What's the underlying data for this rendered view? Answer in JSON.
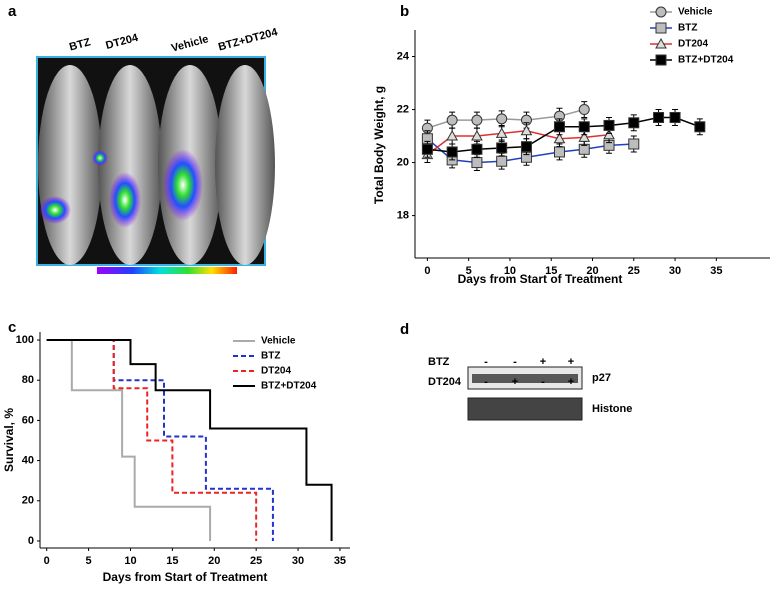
{
  "panel_labels": [
    "a",
    "b",
    "c",
    "d"
  ],
  "panel_a": {
    "labels": [
      "BTZ",
      "DT204",
      "Vehicle",
      "BTZ+DT204"
    ]
  },
  "panel_d": {
    "rows": [
      {
        "label": "BTZ",
        "signs": [
          "-",
          "-",
          "+",
          "+"
        ]
      },
      {
        "label": "DT204",
        "signs": [
          "-",
          "+",
          "-",
          "+"
        ]
      }
    ],
    "bands": [
      "p27",
      "Histone"
    ]
  },
  "chart_data": [
    {
      "type": "line",
      "x_label": "Days from Start of Treatment",
      "y_label": "Total Body Weight, g",
      "xlim": [
        -1.5,
        41.5
      ],
      "xticks": [
        0,
        5,
        10,
        15,
        20,
        25,
        30,
        35
      ],
      "ylim": [
        16.4,
        25
      ],
      "yticks": [
        18,
        20,
        22,
        24
      ],
      "grid": false,
      "legend": "top-right",
      "series": [
        {
          "name": "Vehicle",
          "color": "#9a9a9a",
          "marker": "circle",
          "marker_fill": "#bdbdbd",
          "x": [
            0,
            3,
            6,
            9,
            12,
            16,
            19
          ],
          "values": [
            21.3,
            21.6,
            21.6,
            21.65,
            21.6,
            21.75,
            22.0
          ],
          "errors": [
            0.3,
            0.3,
            0.3,
            0.3,
            0.3,
            0.3,
            0.3
          ]
        },
        {
          "name": "BTZ",
          "color": "#2040c0",
          "marker": "square",
          "marker_fill": "#bdbdbd",
          "x": [
            0,
            3,
            6,
            9,
            12,
            16,
            19,
            22,
            25
          ],
          "values": [
            20.9,
            20.1,
            20.0,
            20.05,
            20.2,
            20.4,
            20.5,
            20.65,
            20.7
          ],
          "errors": [
            0.3,
            0.3,
            0.3,
            0.3,
            0.3,
            0.3,
            0.3,
            0.3,
            0.3
          ]
        },
        {
          "name": "DT204",
          "color": "#e03030",
          "marker": "triangle",
          "marker_fill": "#dddddd",
          "x": [
            0,
            3,
            6,
            9,
            12,
            16,
            19,
            22
          ],
          "values": [
            20.3,
            21.0,
            21.0,
            21.1,
            21.2,
            20.9,
            20.95,
            21.05
          ],
          "errors": [
            0.3,
            0.3,
            0.3,
            0.3,
            0.3,
            0.3,
            0.3,
            0.3
          ]
        },
        {
          "name": "BTZ+DT204",
          "color": "#000000",
          "marker": "square",
          "marker_fill": "#000000",
          "x": [
            0,
            3,
            6,
            9,
            12,
            16,
            19,
            22,
            25,
            28,
            30,
            33
          ],
          "values": [
            20.5,
            20.4,
            20.5,
            20.55,
            20.6,
            21.35,
            21.35,
            21.4,
            21.5,
            21.7,
            21.7,
            21.35
          ],
          "errors": [
            0.3,
            0.3,
            0.3,
            0.3,
            0.3,
            0.3,
            0.3,
            0.3,
            0.3,
            0.3,
            0.3,
            0.3
          ]
        }
      ]
    },
    {
      "type": "step",
      "x_label": "Days from Start of Treatment",
      "y_label": "Survival, %",
      "xlim": [
        -0.8,
        36.2
      ],
      "xticks": [
        0,
        5,
        10,
        15,
        20,
        25,
        30,
        35
      ],
      "ylim": [
        -3.5,
        104
      ],
      "yticks": [
        0,
        20,
        40,
        60,
        80,
        100
      ],
      "grid": false,
      "legend": "top-right",
      "series": [
        {
          "name": "Vehicle",
          "color": "#aaaaaa",
          "dashed": false,
          "x": [
            0,
            3,
            9,
            10.5,
            19.5
          ],
          "values": [
            100,
            75,
            42,
            17,
            0
          ]
        },
        {
          "name": "BTZ",
          "color": "#2233cc",
          "dashed": true,
          "x": [
            0,
            8,
            14,
            19,
            27
          ],
          "values": [
            100,
            80,
            52,
            26,
            0
          ]
        },
        {
          "name": "DT204",
          "color": "#ee2222",
          "dashed": true,
          "x": [
            0,
            8,
            12,
            15,
            25
          ],
          "values": [
            100,
            76,
            50,
            24,
            0
          ]
        },
        {
          "name": "BTZ+DT204",
          "color": "#000000",
          "dashed": false,
          "x": [
            0,
            10,
            13,
            19.5,
            31,
            34
          ],
          "values": [
            100,
            88,
            75,
            56,
            28,
            0
          ]
        }
      ]
    }
  ]
}
